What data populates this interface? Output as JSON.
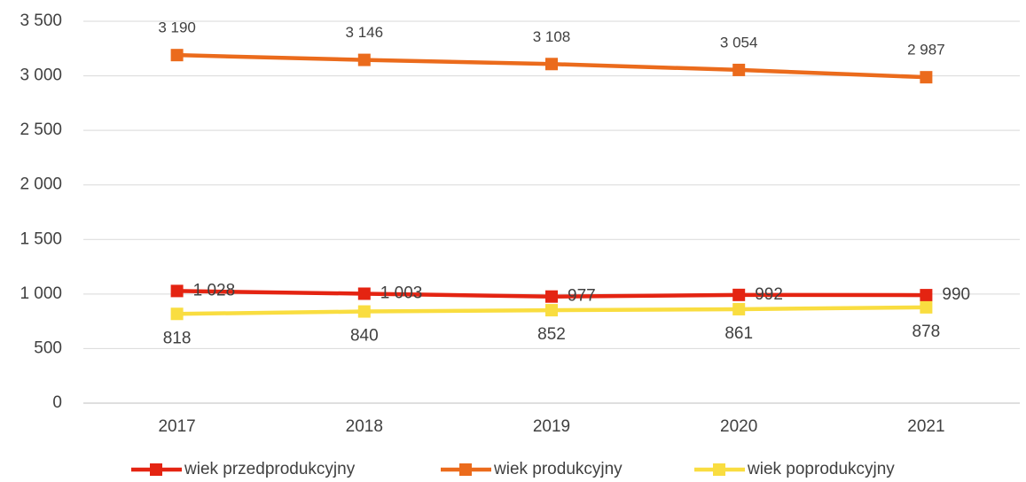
{
  "chart_data": {
    "type": "line",
    "categories": [
      "2017",
      "2018",
      "2019",
      "2020",
      "2021"
    ],
    "series": [
      {
        "name": "wiek przedprodukcyjny",
        "color": "#e42412",
        "values": [
          1028,
          1003,
          977,
          992,
          990
        ],
        "value_labels": [
          "1 028",
          "1 003",
          "977",
          "992",
          "990"
        ]
      },
      {
        "name": "wiek produkcyjny",
        "color": "#eb6b1c",
        "values": [
          3190,
          3146,
          3108,
          3054,
          2987
        ],
        "value_labels": [
          "3 190",
          "3 146",
          "3 108",
          "3 054",
          "2 987"
        ]
      },
      {
        "name": "wiek poprodukcyjny",
        "color": "#f9dd40",
        "values": [
          818,
          840,
          852,
          861,
          878
        ]
      }
    ],
    "ylim": [
      0,
      3500
    ],
    "yticks": [
      0,
      500,
      {
        "value": 1000,
        "label": "1 000"
      },
      {
        "value": 1500,
        "label": "1 500"
      },
      {
        "value": 2000,
        "label": "2 000"
      },
      {
        "value": 2500,
        "label": "2 500"
      },
      {
        "value": 3000,
        "label": "3 000"
      },
      {
        "value": 3500,
        "label": "3 500"
      }
    ],
    "grid": true,
    "legend": "bottom"
  }
}
